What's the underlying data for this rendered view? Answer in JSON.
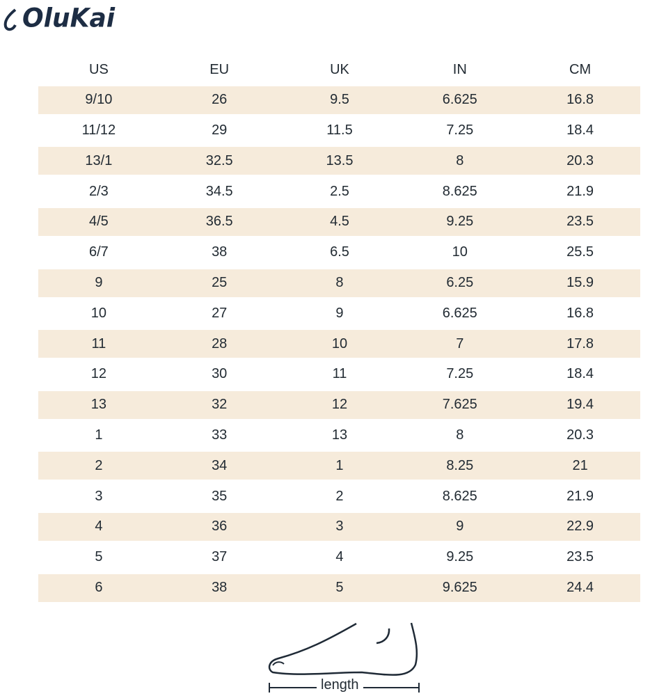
{
  "brand": {
    "name": "OluKai",
    "color": "#1d2d44"
  },
  "table": {
    "headers": [
      "US",
      "EU",
      "UK",
      "IN",
      "CM"
    ],
    "rows": [
      [
        "9/10",
        "26",
        "9.5",
        "6.625",
        "16.8"
      ],
      [
        "11/12",
        "29",
        "11.5",
        "7.25",
        "18.4"
      ],
      [
        "13/1",
        "32.5",
        "13.5",
        "8",
        "20.3"
      ],
      [
        "2/3",
        "34.5",
        "2.5",
        "8.625",
        "21.9"
      ],
      [
        "4/5",
        "36.5",
        "4.5",
        "9.25",
        "23.5"
      ],
      [
        "6/7",
        "38",
        "6.5",
        "10",
        "25.5"
      ],
      [
        "9",
        "25",
        "8",
        "6.25",
        "15.9"
      ],
      [
        "10",
        "27",
        "9",
        "6.625",
        "16.8"
      ],
      [
        "11",
        "28",
        "10",
        "7",
        "17.8"
      ],
      [
        "12",
        "30",
        "11",
        "7.25",
        "18.4"
      ],
      [
        "13",
        "32",
        "12",
        "7.625",
        "19.4"
      ],
      [
        "1",
        "33",
        "13",
        "8",
        "20.3"
      ],
      [
        "2",
        "34",
        "1",
        "8.25",
        "21"
      ],
      [
        "3",
        "35",
        "2",
        "8.625",
        "21.9"
      ],
      [
        "4",
        "36",
        "3",
        "9",
        "22.9"
      ],
      [
        "5",
        "37",
        "4",
        "9.25",
        "23.5"
      ],
      [
        "6",
        "38",
        "5",
        "9.625",
        "24.4"
      ]
    ],
    "stripe_color": "#f6ebdb"
  },
  "diagram": {
    "label": "length"
  }
}
